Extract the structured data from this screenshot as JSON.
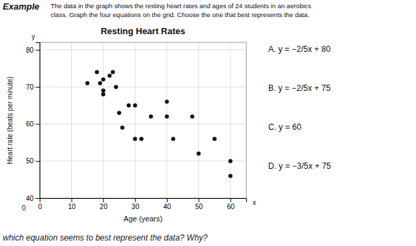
{
  "chart_data": {
    "type": "scatter",
    "title": "Resting Heart Rates",
    "header": "Example",
    "subtitle": "The data in the graph shows the resting heart rates and ages of 24 students in an aerobics\nclass.  Graph the four equations on the grid.  Choose the one that best represents the data.",
    "footer": "which equation seems to best represent the data? Why?",
    "equations": [
      "A.  y = −2/5x + 80",
      "B.  y = −2/5x + 75",
      "C.  y = 60",
      "D.  y = −3/5x + 75"
    ],
    "xlabel": "Age (years)",
    "ylabel": "Heart rate (beats per minute)",
    "annotations": [
      {
        "text": "y",
        "x": -2,
        "y": 83
      },
      {
        "text": "x",
        "x": 67,
        "y": 39.5
      },
      {
        "text": "0",
        "x": -5,
        "y": 38
      }
    ],
    "x": [
      15,
      18,
      19,
      20,
      20,
      20,
      22,
      23,
      24,
      25,
      26,
      28,
      30,
      30,
      32,
      35,
      40,
      40,
      42,
      48,
      50,
      55,
      60,
      60
    ],
    "values": [
      71,
      74,
      71,
      72,
      68,
      69,
      73,
      74,
      70,
      63,
      59,
      65,
      65,
      56,
      56,
      62,
      66,
      62,
      56,
      62,
      52,
      56,
      50,
      46
    ],
    "color": "#111111",
    "marker": "circle",
    "xlim": [
      0,
      65
    ],
    "ylim": [
      40,
      82
    ],
    "xticks": [
      0,
      10,
      20,
      30,
      40,
      50,
      60
    ],
    "yticks": [
      40,
      50,
      60,
      70,
      80
    ],
    "grid": true
  }
}
